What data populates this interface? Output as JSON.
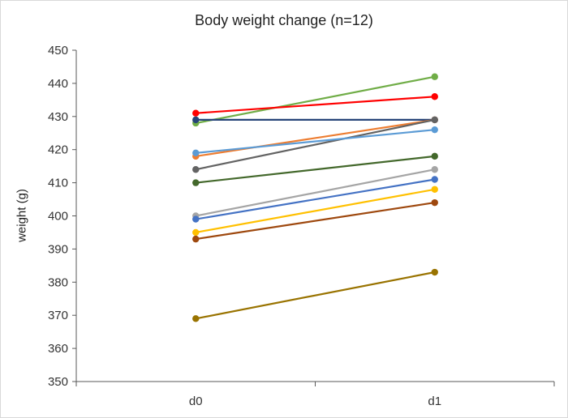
{
  "chart_data": {
    "type": "line",
    "title": "Body weight change (n=12)",
    "xlabel": "",
    "ylabel": "weight (g)",
    "categories": [
      "d0",
      "d1"
    ],
    "ylim": [
      350,
      450
    ],
    "yticks": [
      350,
      360,
      370,
      380,
      390,
      400,
      410,
      420,
      430,
      440,
      450
    ],
    "grid": false,
    "legend": "none",
    "series": [
      {
        "values": [
          428,
          442
        ],
        "color": "#70ad47"
      },
      {
        "values": [
          431,
          436
        ],
        "color": "#ff0000"
      },
      {
        "values": [
          429,
          429
        ],
        "color": "#264478"
      },
      {
        "values": [
          418,
          429
        ],
        "color": "#ed7d31"
      },
      {
        "values": [
          414,
          429
        ],
        "color": "#636363"
      },
      {
        "values": [
          419,
          426
        ],
        "color": "#5b9bd5"
      },
      {
        "values": [
          410,
          418
        ],
        "color": "#43682b"
      },
      {
        "values": [
          400,
          414
        ],
        "color": "#a5a5a5"
      },
      {
        "values": [
          399,
          411
        ],
        "color": "#4472c4"
      },
      {
        "values": [
          395,
          408
        ],
        "color": "#ffc000"
      },
      {
        "values": [
          393,
          404
        ],
        "color": "#9e480e"
      },
      {
        "values": [
          369,
          383
        ],
        "color": "#997300"
      }
    ]
  }
}
